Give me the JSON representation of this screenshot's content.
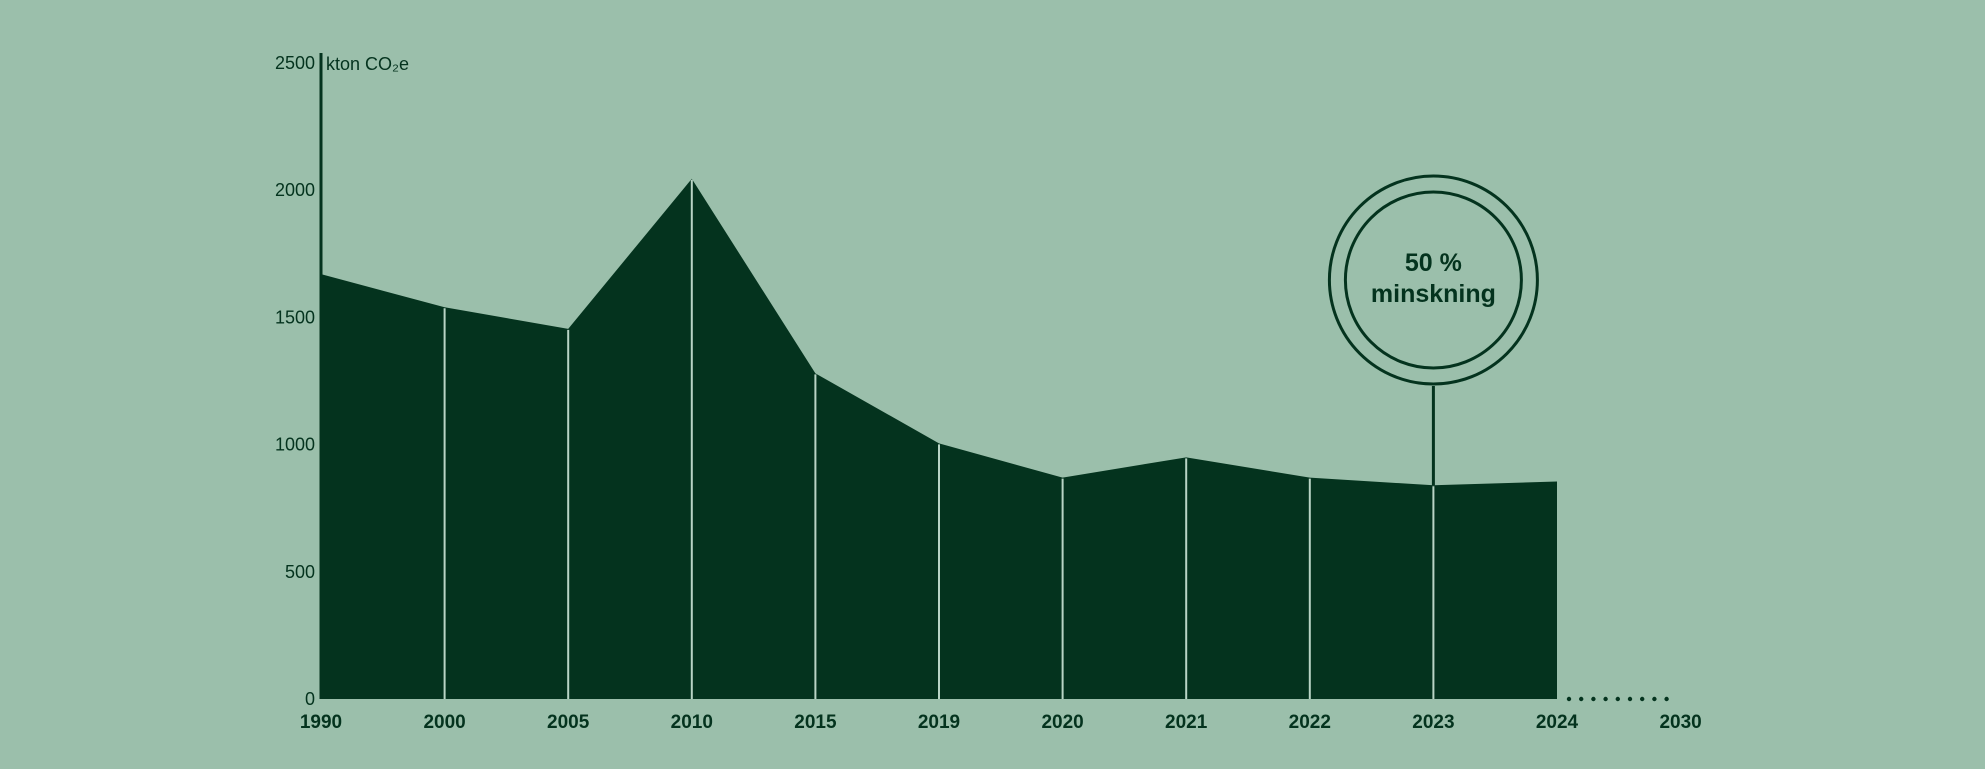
{
  "chart_data": {
    "type": "area",
    "ylabel": "kton CO₂e",
    "ylim": [
      0,
      2500
    ],
    "yticks": [
      "0",
      "500",
      "1000",
      "1500",
      "2000",
      "2500"
    ],
    "x": [
      "1990",
      "2000",
      "2005",
      "2010",
      "2015",
      "2019",
      "2020",
      "2021",
      "2022",
      "2023",
      "2024"
    ],
    "values": [
      1670,
      1540,
      1455,
      2045,
      1280,
      1005,
      870,
      950,
      870,
      840,
      855
    ],
    "x_future": [
      "2030"
    ],
    "annotation": {
      "x": "2023",
      "line1": "50 %",
      "line2": "minskning"
    },
    "grid": false,
    "legend": "none"
  },
  "colors": {
    "background": "#9bbfab",
    "area": "#04331e",
    "separator": "#b9d4c5",
    "text": "#04331e"
  }
}
